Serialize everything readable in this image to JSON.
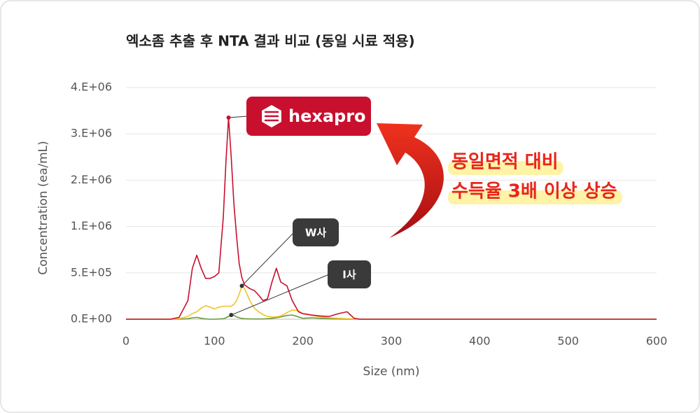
{
  "chart_data": {
    "type": "line",
    "title": "엑소좀 추출 후 NTA 결과 비교 (동일 시료 적용)",
    "x_label": "Size (nm)",
    "y_label": "Concentration (ea/mL)",
    "x": [
      0,
      50,
      60,
      70,
      75,
      80,
      85,
      90,
      95,
      100,
      105,
      110,
      113,
      116,
      119,
      122,
      125,
      128,
      131,
      134,
      140,
      145,
      150,
      155,
      160,
      165,
      170,
      175,
      182,
      188,
      195,
      200,
      210,
      220,
      230,
      240,
      250,
      258,
      265,
      280,
      600
    ],
    "series": [
      {
        "name": "hexapro",
        "color": "#c8102e",
        "values": [
          0,
          0,
          20000,
          200000,
          550000,
          690000,
          550000,
          440000,
          440000,
          460000,
          500000,
          1200000,
          2400000,
          3350000,
          2500000,
          1500000,
          900000,
          600000,
          450000,
          370000,
          330000,
          310000,
          260000,
          200000,
          220000,
          400000,
          550000,
          400000,
          360000,
          200000,
          80000,
          60000,
          45000,
          35000,
          30000,
          60000,
          80000,
          10000,
          0,
          0,
          0
        ]
      },
      {
        "name": "W사",
        "color": "#f2c12e",
        "values": [
          0,
          0,
          5000,
          30000,
          60000,
          80000,
          120000,
          145000,
          130000,
          110000,
          130000,
          140000,
          140000,
          140000,
          140000,
          160000,
          200000,
          270000,
          360000,
          330000,
          200000,
          120000,
          80000,
          50000,
          30000,
          25000,
          25000,
          35000,
          70000,
          100000,
          90000,
          60000,
          40000,
          25000,
          15000,
          10000,
          5000,
          3000,
          0,
          0,
          0
        ]
      },
      {
        "name": "I사",
        "color": "#6a9a3a",
        "values": [
          0,
          0,
          0,
          5000,
          15000,
          20000,
          10000,
          3000,
          0,
          0,
          2000,
          5000,
          15000,
          30000,
          45000,
          40000,
          25000,
          15000,
          8000,
          5000,
          3000,
          2000,
          2000,
          3000,
          5000,
          10000,
          15000,
          25000,
          40000,
          45000,
          25000,
          10000,
          15000,
          10000,
          5000,
          2000,
          0,
          0,
          0,
          0,
          0
        ]
      }
    ],
    "xlim": [
      0,
      600
    ],
    "xticks": [
      0,
      100,
      200,
      300,
      400,
      500,
      600
    ],
    "ylim": [
      0,
      4000000
    ],
    "yticks": [
      {
        "value": 0,
        "label": "0.E+00"
      },
      {
        "value": 500000,
        "label": "5.E+05"
      },
      {
        "value": 1000000,
        "label": "1.E+06"
      },
      {
        "value": 2000000,
        "label": "2.E+06"
      },
      {
        "value": 3000000,
        "label": "3.E+06"
      },
      {
        "value": 4000000,
        "label": "4.E+06"
      }
    ],
    "grid": true,
    "annotations": [
      "동일면적 대비",
      "수득율 3배 이상 상승"
    ]
  }
}
